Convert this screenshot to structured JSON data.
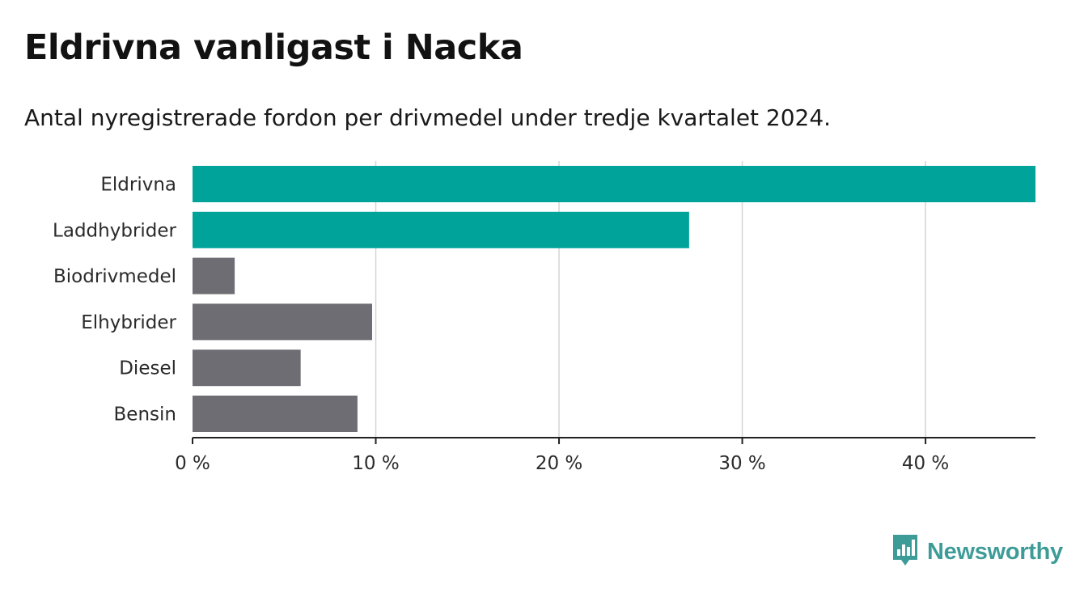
{
  "header": {
    "title": "Eldrivna vanligast i Nacka",
    "subtitle": "Antal nyregistrerade fordon per drivmedel under tredje kvartalet 2024."
  },
  "brand": {
    "name": "Newsworthy",
    "logo_icon": "bar-chart-icon",
    "color": "#3e9c98"
  },
  "colors": {
    "highlight": "#00a39a",
    "default": "#6e6d73",
    "grid": "#d4d4d4",
    "axis": "#222222"
  },
  "chart_data": {
    "type": "bar",
    "orientation": "horizontal",
    "title": "Eldrivna vanligast i Nacka",
    "subtitle": "Antal nyregistrerade fordon per drivmedel under tredje kvartalet 2024.",
    "xlabel": "",
    "ylabel": "",
    "xlim": [
      0,
      46
    ],
    "xticks": [
      0,
      10,
      20,
      30,
      40
    ],
    "tick_labels": [
      "0 %",
      "10 %",
      "20 %",
      "30 %",
      "40 %"
    ],
    "grid": true,
    "categories": [
      "Eldrivna",
      "Laddhybrider",
      "Biodrivmedel",
      "Elhybrider",
      "Diesel",
      "Bensin"
    ],
    "values": [
      46.0,
      27.1,
      2.3,
      9.8,
      5.9,
      9.0
    ],
    "highlighted": [
      true,
      true,
      false,
      false,
      false,
      false
    ],
    "unit": "%"
  }
}
